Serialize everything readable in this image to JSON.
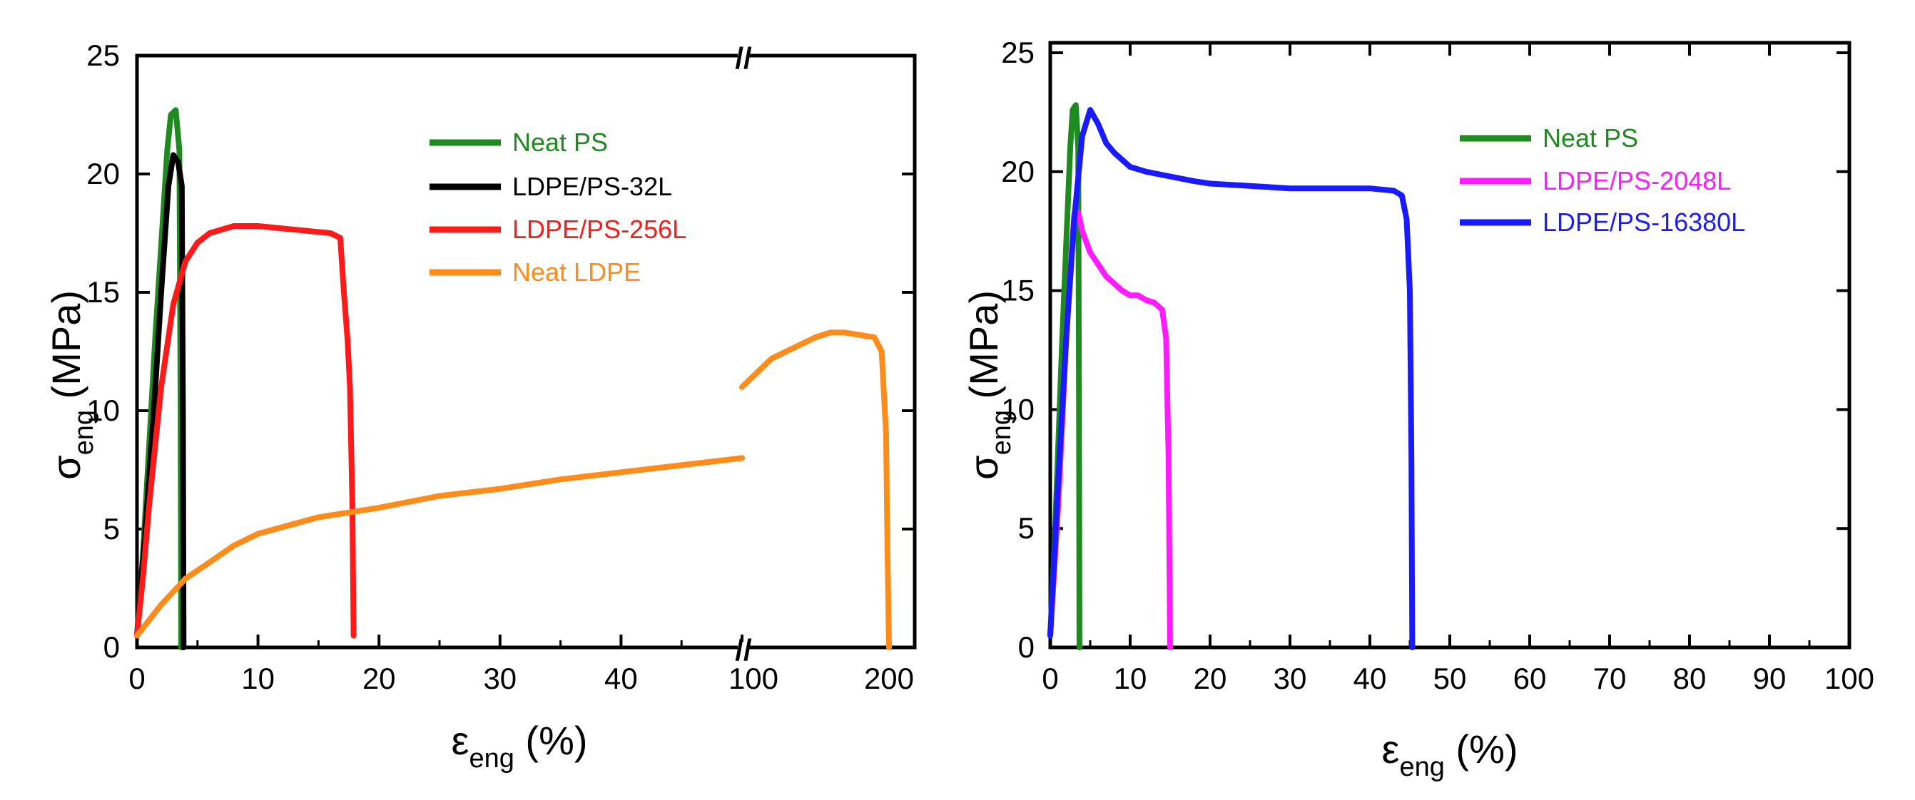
{
  "chart_data": [
    {
      "type": "line",
      "x_axis": {
        "segments": [
          {
            "range": [
              0,
              50
            ],
            "ticks": [
              0,
              10,
              20,
              30,
              40
            ]
          },
          {
            "range": [
              100,
              200
            ],
            "ticks": [
              100,
              200
            ]
          }
        ],
        "break_after": 50,
        "break_mark": "//",
        "label_symbol": "ε",
        "label_sub": "eng",
        "label_unit": " (%)"
      },
      "y_axis": {
        "range": [
          0,
          25
        ],
        "ticks": [
          0,
          5,
          10,
          15,
          20,
          25
        ],
        "label_symbol": "σ",
        "label_sub": "eng",
        "label_unit": " (MPa)"
      },
      "legend_position": "top-right",
      "series": [
        {
          "name": "Neat PS",
          "color": "#1f8a1f",
          "points": [
            [
              0,
              0.5
            ],
            [
              0.5,
              4
            ],
            [
              1,
              8.5
            ],
            [
              1.5,
              13
            ],
            [
              2,
              17
            ],
            [
              2.5,
              21
            ],
            [
              2.8,
              22.5
            ],
            [
              3.2,
              22.7
            ],
            [
              3.5,
              21
            ],
            [
              3.6,
              10
            ],
            [
              3.65,
              0
            ]
          ]
        },
        {
          "name": "LDPE/PS-32L",
          "color": "#000000",
          "points": [
            [
              0,
              0.5
            ],
            [
              0.7,
              5
            ],
            [
              1.4,
              10
            ],
            [
              2,
              15
            ],
            [
              2.6,
              19.5
            ],
            [
              3,
              20.8
            ],
            [
              3.4,
              20.5
            ],
            [
              3.7,
              19.5
            ],
            [
              3.8,
              10
            ],
            [
              3.85,
              0
            ]
          ]
        },
        {
          "name": "LDPE/PS-256L",
          "color": "#ff1a1a",
          "points": [
            [
              0,
              0.5
            ],
            [
              0.5,
              3
            ],
            [
              1,
              6
            ],
            [
              2,
              11
            ],
            [
              3,
              14.5
            ],
            [
              4,
              16.3
            ],
            [
              5,
              17.1
            ],
            [
              6,
              17.5
            ],
            [
              8,
              17.8
            ],
            [
              10,
              17.8
            ],
            [
              12,
              17.7
            ],
            [
              14,
              17.6
            ],
            [
              16,
              17.5
            ],
            [
              16.8,
              17.3
            ],
            [
              17.1,
              15
            ],
            [
              17.4,
              13
            ],
            [
              17.6,
              11
            ],
            [
              17.8,
              6
            ],
            [
              17.9,
              0.5
            ]
          ]
        },
        {
          "name": "Neat LDPE",
          "color": "#ff8c1a",
          "points": [
            [
              0,
              0.5
            ],
            [
              2,
              1.8
            ],
            [
              4,
              2.9
            ],
            [
              6,
              3.6
            ],
            [
              8,
              4.3
            ],
            [
              10,
              4.8
            ],
            [
              15,
              5.5
            ],
            [
              20,
              5.9
            ],
            [
              25,
              6.4
            ],
            [
              30,
              6.7
            ],
            [
              35,
              7.1
            ],
            [
              40,
              7.4
            ],
            [
              45,
              7.7
            ],
            [
              50,
              8.0
            ],
            [
              100,
              11
            ],
            [
              110,
              11.6
            ],
            [
              120,
              12.2
            ],
            [
              130,
              12.5
            ],
            [
              140,
              12.8
            ],
            [
              150,
              13.1
            ],
            [
              160,
              13.3
            ],
            [
              170,
              13.3
            ],
            [
              190,
              13.1
            ],
            [
              195,
              12.5
            ],
            [
              198,
              9
            ],
            [
              199,
              4
            ],
            [
              200,
              0
            ]
          ]
        }
      ]
    },
    {
      "type": "line",
      "x_axis": {
        "range": [
          0,
          100
        ],
        "ticks": [
          0,
          10,
          20,
          30,
          40,
          50,
          60,
          70,
          80,
          90,
          100
        ],
        "label_symbol": "ε",
        "label_sub": "eng",
        "label_unit": " (%)"
      },
      "y_axis": {
        "range": [
          0,
          25
        ],
        "ticks": [
          0,
          5,
          10,
          15,
          20,
          25
        ],
        "label_symbol": "σ",
        "label_sub": "eng",
        "label_unit": " (MPa)"
      },
      "legend_position": "top-right",
      "series": [
        {
          "name": "Neat PS",
          "color": "#1f8a1f",
          "points": [
            [
              0,
              0.5
            ],
            [
              0.5,
              4
            ],
            [
              1,
              8.5
            ],
            [
              1.5,
              13
            ],
            [
              2,
              17
            ],
            [
              2.5,
              21
            ],
            [
              2.8,
              22.6
            ],
            [
              3.2,
              22.8
            ],
            [
              3.5,
              21
            ],
            [
              3.6,
              10
            ],
            [
              3.65,
              0
            ]
          ]
        },
        {
          "name": "LDPE/PS-2048L",
          "color": "#ff1aff",
          "points": [
            [
              0,
              0.5
            ],
            [
              1,
              6
            ],
            [
              2,
              13
            ],
            [
              3,
              18.2
            ],
            [
              3.5,
              18.3
            ],
            [
              4,
              17.5
            ],
            [
              5,
              16.6
            ],
            [
              6,
              16.1
            ],
            [
              7,
              15.6
            ],
            [
              8,
              15.3
            ],
            [
              9,
              15.0
            ],
            [
              10,
              14.8
            ],
            [
              11,
              14.8
            ],
            [
              12,
              14.6
            ],
            [
              13,
              14.5
            ],
            [
              14,
              14.2
            ],
            [
              14.5,
              13
            ],
            [
              14.8,
              8
            ],
            [
              15,
              0
            ]
          ]
        },
        {
          "name": "LDPE/PS-16380L",
          "color": "#1a1aff",
          "points": [
            [
              0,
              0.5
            ],
            [
              1,
              7
            ],
            [
              2,
              13
            ],
            [
              3,
              18
            ],
            [
              4,
              21.5
            ],
            [
              5,
              22.6
            ],
            [
              6,
              22
            ],
            [
              7,
              21.2
            ],
            [
              8,
              20.8
            ],
            [
              10,
              20.2
            ],
            [
              12,
              20.0
            ],
            [
              15,
              19.8
            ],
            [
              18,
              19.6
            ],
            [
              20,
              19.5
            ],
            [
              25,
              19.4
            ],
            [
              30,
              19.3
            ],
            [
              35,
              19.3
            ],
            [
              40,
              19.3
            ],
            [
              43,
              19.2
            ],
            [
              44,
              19.0
            ],
            [
              44.6,
              18
            ],
            [
              45,
              15
            ],
            [
              45.2,
              8
            ],
            [
              45.3,
              0
            ]
          ]
        }
      ]
    }
  ]
}
